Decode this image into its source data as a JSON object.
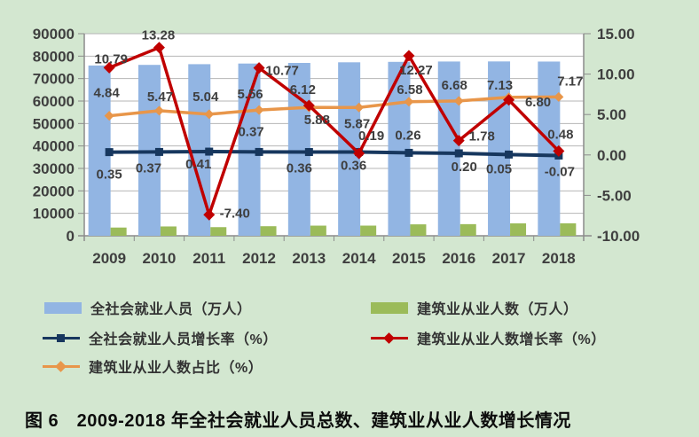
{
  "figure": {
    "caption": "图 6　2009-2018 年全社会就业人员总数、建筑业从业人数增长情况"
  },
  "colors": {
    "page_background": "#d3e7d0",
    "plot_background": "#ffffff",
    "gridline": "#b6b6b6",
    "axis_line": "#8c8c8c",
    "axis_text": "#3f3f3f",
    "total_employment_bar": "#92b5e3",
    "construction_bar": "#9bbb59",
    "total_growth_line": "#17375e",
    "construction_growth_line": "#c00000",
    "construction_share_line": "#e8964a"
  },
  "legend": {
    "items": [
      {
        "label": "全社会就业人员（万人）",
        "swatch": "bar",
        "color": "#92b5e3"
      },
      {
        "label": "建筑业从业人数（万人）",
        "swatch": "bar",
        "color": "#9bbb59"
      },
      {
        "label": "全社会就业人员增长率（%）",
        "swatch": "line-square",
        "color": "#17375e"
      },
      {
        "label": "建筑业从业人数增长率（%）",
        "swatch": "line-diamond",
        "color": "#c00000"
      },
      {
        "label": "建筑业从业人数占比（%）",
        "swatch": "line-diamond",
        "color": "#e8964a"
      }
    ]
  },
  "chart_data": {
    "type": "combo-bar-line",
    "title": "图 6　2009-2018 年全社会就业人员总数、建筑业从业人数增长情况",
    "categories": [
      "2009",
      "2010",
      "2011",
      "2012",
      "2013",
      "2014",
      "2015",
      "2016",
      "2017",
      "2018"
    ],
    "grid": true,
    "legend_position": "bottom",
    "left_axis": {
      "min": 0,
      "max": 90000,
      "step": 10000,
      "tick_labels": [
        "90000",
        "80000",
        "70000",
        "60000",
        "50000",
        "40000",
        "30000",
        "20000",
        "10000",
        "0"
      ]
    },
    "right_axis": {
      "min": -10,
      "max": 15,
      "step": 5,
      "tick_labels": [
        "15.00",
        "10.00",
        "5.00",
        "0.00",
        "-5.00",
        "-10.00"
      ]
    },
    "series": [
      {
        "key": "total-employment",
        "name": "全社会就业人员（万人）",
        "type": "bar",
        "axis": "left",
        "color": "#92b5e3",
        "values": [
          75828,
          76105,
          76420,
          76704,
          76977,
          77253,
          77451,
          77603,
          77640,
          77586
        ],
        "note": "values estimated from bar heights against left axis; no data labels shown"
      },
      {
        "key": "construction-employment",
        "name": "建筑业从业人数（万人）",
        "type": "bar",
        "axis": "left",
        "color": "#9bbb59",
        "values": [
          3670,
          4160,
          3850,
          4265,
          4525,
          4535,
          5095,
          5185,
          5535,
          5565
        ],
        "note": "values estimated from bar heights against left axis; no data labels shown"
      },
      {
        "key": "total-employment-growth",
        "name": "全社会就业人员增长率（%）",
        "type": "line",
        "marker": "square",
        "axis": "right",
        "color": "#17375e",
        "width": 4,
        "values": [
          0.35,
          0.37,
          0.41,
          0.37,
          0.36,
          0.36,
          0.26,
          0.2,
          0.05,
          -0.07
        ],
        "value_labels": [
          "0.35",
          "0.37",
          "0.41",
          "0.37",
          "0.36",
          "0.36",
          "0.26",
          "0.20",
          "0.05",
          "-0.07"
        ],
        "label_offsets": [
          [
            0,
            25
          ],
          [
            -12,
            18
          ],
          [
            -12,
            14
          ],
          [
            -9,
            -23
          ],
          [
            -11,
            18
          ],
          [
            -6,
            15
          ],
          [
            -1,
            -20
          ],
          [
            6,
            15
          ],
          [
            -11,
            16
          ],
          [
            1,
            18
          ]
        ]
      },
      {
        "key": "construction-growth",
        "name": "建筑业从业人数增长率（%）",
        "type": "line",
        "marker": "diamond",
        "axis": "right",
        "color": "#c00000",
        "width": 3.5,
        "marker_size": 6.5,
        "values": [
          10.79,
          13.28,
          -7.4,
          10.77,
          6.12,
          0.19,
          12.27,
          1.78,
          6.8,
          0.48
        ],
        "value_labels": [
          "10.79",
          "13.28",
          "-7.40",
          "10.77",
          "6.12",
          "0.19",
          "12.27",
          "1.78",
          "6.80",
          "0.48"
        ],
        "label_offsets": [
          [
            2,
            -10
          ],
          [
            -1,
            -14
          ],
          [
            29,
            -2
          ],
          [
            26,
            3
          ],
          [
            -7,
            -18
          ],
          [
            14,
            -20
          ],
          [
            8,
            16
          ],
          [
            26,
            -5
          ],
          [
            33,
            2
          ],
          [
            2,
            -19
          ]
        ]
      },
      {
        "key": "construction-share",
        "name": "建筑业从业人数占比（%）",
        "type": "line",
        "marker": "diamond",
        "axis": "right",
        "color": "#e8964a",
        "width": 3.5,
        "marker_size": 5.5,
        "values": [
          4.84,
          5.47,
          5.04,
          5.56,
          5.88,
          5.87,
          6.58,
          6.68,
          7.13,
          7.17
        ],
        "value_labels": [
          "4.84",
          "5.47",
          "5.04",
          "5.56",
          "5.88",
          "5.87",
          "6.58",
          "6.68",
          "7.13",
          "7.17"
        ],
        "label_offsets": [
          [
            -3,
            -26
          ],
          [
            1,
            -16
          ],
          [
            -4,
            -20
          ],
          [
            -10,
            -18
          ],
          [
            9,
            14
          ],
          [
            -2,
            18
          ],
          [
            1,
            -14
          ],
          [
            -5,
            -18
          ],
          [
            -10,
            -14
          ],
          [
            13,
            -18
          ]
        ]
      }
    ]
  }
}
